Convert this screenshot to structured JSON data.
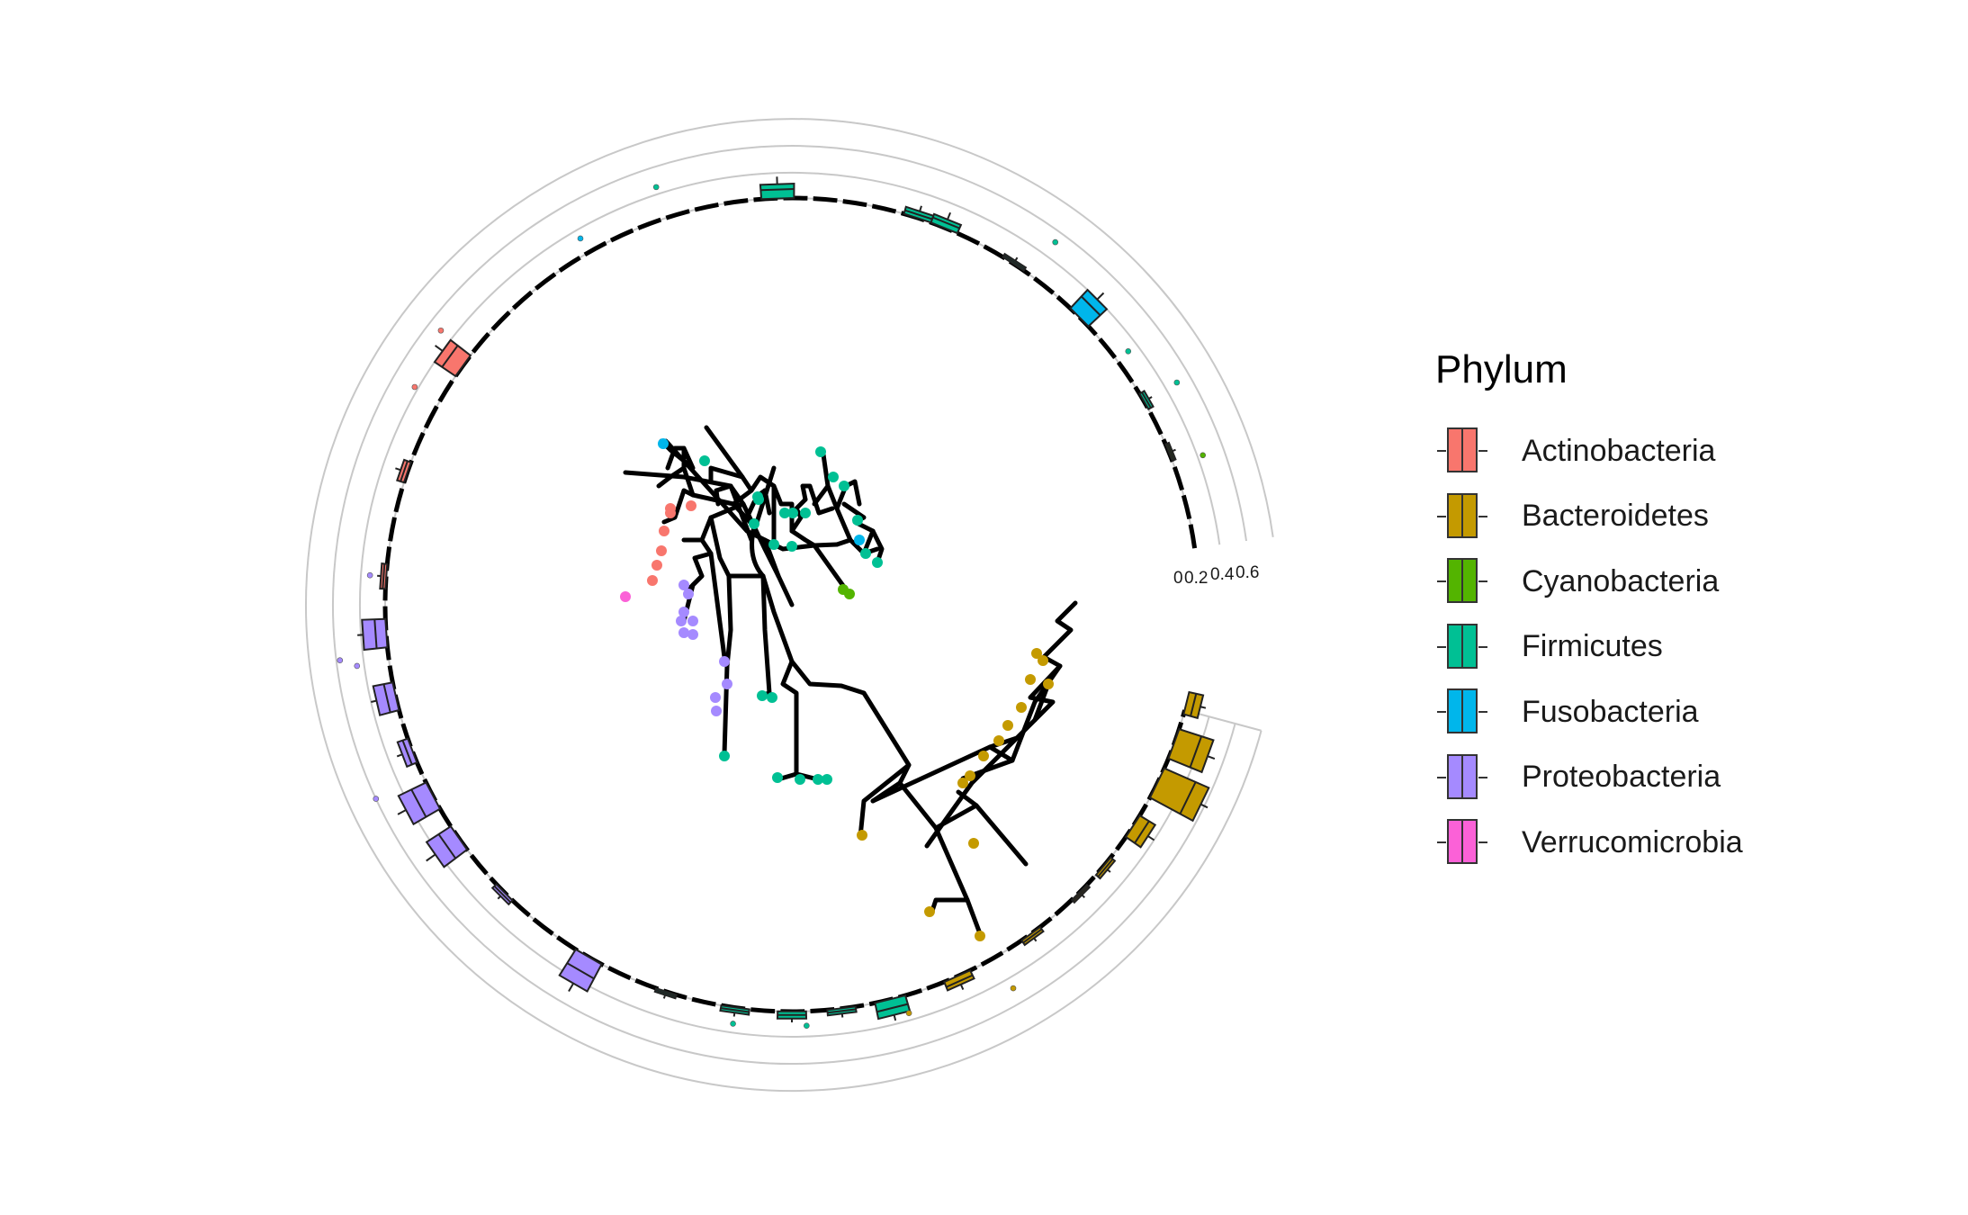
{
  "legend": {
    "title": "Phylum",
    "items": [
      {
        "label": "Actinobacteria",
        "color": "#F8766D"
      },
      {
        "label": "Bacteroidetes",
        "color": "#C49A00"
      },
      {
        "label": "Cyanobacteria",
        "color": "#53B400"
      },
      {
        "label": "Firmicutes",
        "color": "#00C094"
      },
      {
        "label": "Fusobacteria",
        "color": "#00B6EB"
      },
      {
        "label": "Proteobacteria",
        "color": "#A58AFF"
      },
      {
        "label": "Verrucomicrobia",
        "color": "#FB61D7"
      }
    ]
  },
  "ring_axis": {
    "ticks": [
      "0",
      "0.2",
      "0.4",
      "0.6"
    ],
    "ring_color": "#c8c8c8"
  }
}
